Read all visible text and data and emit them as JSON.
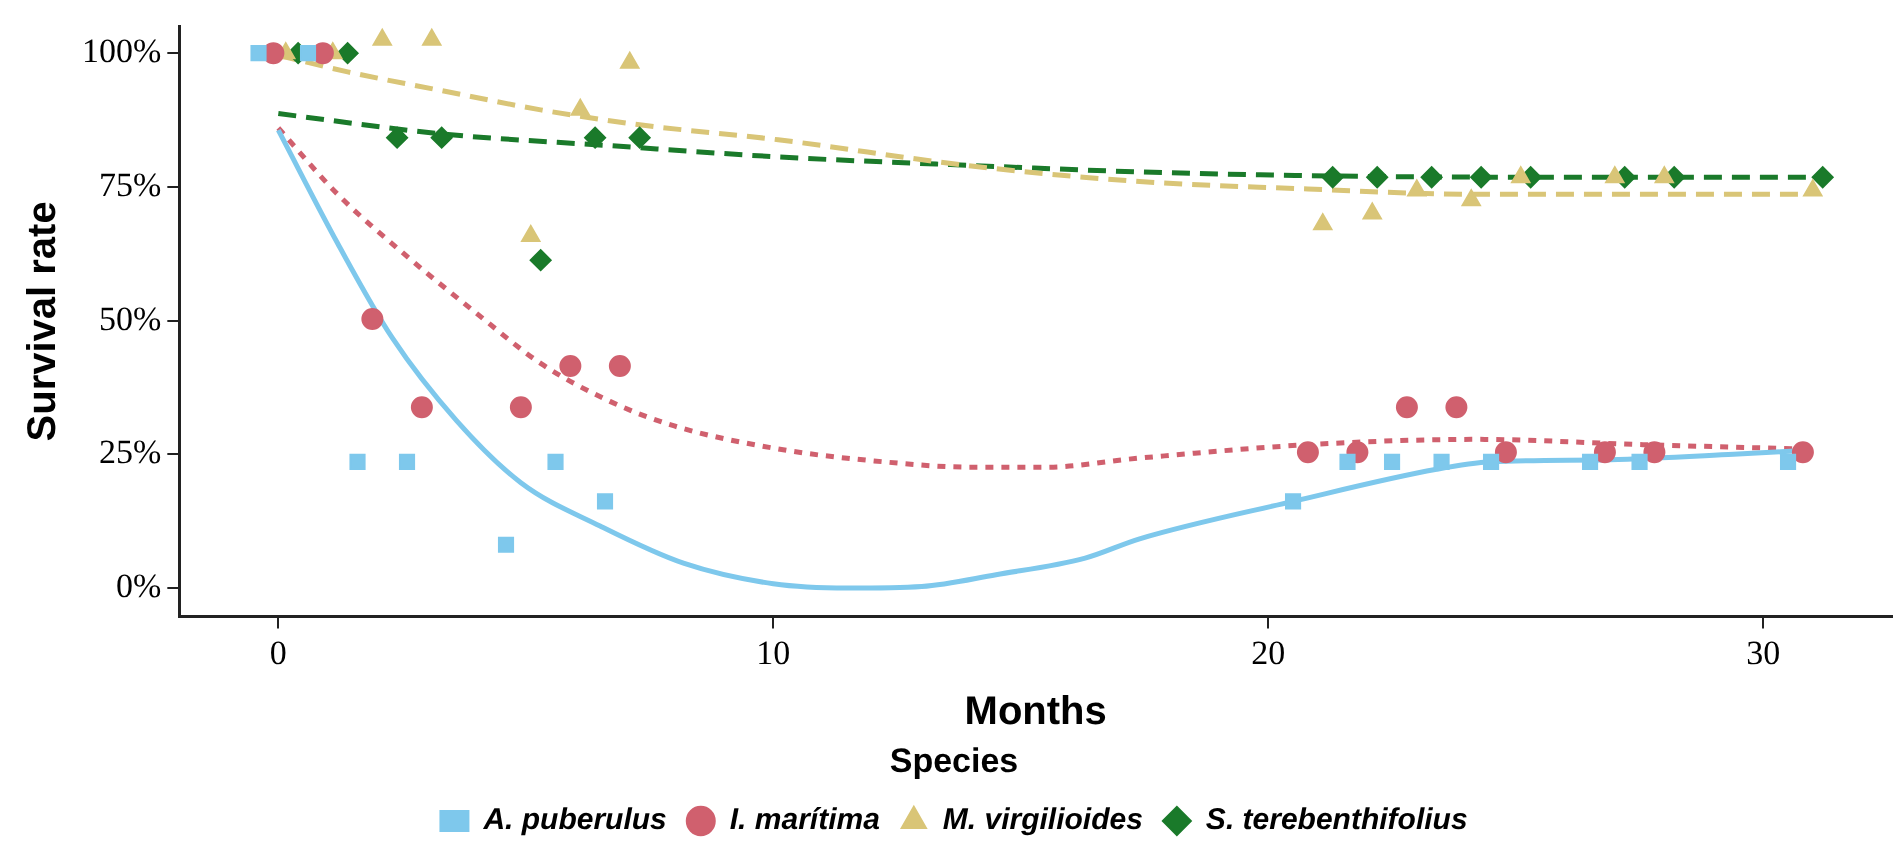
{
  "chart_data": {
    "type": "scatter",
    "xlabel": "Months",
    "ylabel": "Survival rate",
    "legend_title": "Species",
    "legend": "bottom",
    "grid": false,
    "xlim": [
      -2,
      32.6
    ],
    "xticks": [
      0,
      10,
      20,
      30
    ],
    "ylim": [
      -5.3,
      105
    ],
    "yticks": [
      {
        "value": 0,
        "label": "0%"
      },
      {
        "value": 25,
        "label": "25%"
      },
      {
        "value": 50,
        "label": "50%"
      },
      {
        "value": 75,
        "label": "75%"
      },
      {
        "value": 100,
        "label": "100%"
      }
    ],
    "series": [
      {
        "name": "A. puberulus",
        "marker": "square",
        "color": "#7ec8ec",
        "x": [
          -0.4,
          0.6,
          1.6,
          2.6,
          4.6,
          5.6,
          6.6,
          20.5,
          21.6,
          22.5,
          23.5,
          24.5,
          26.5,
          27.5,
          30.5
        ],
        "values": [
          100,
          100,
          23.6,
          23.6,
          8.1,
          23.6,
          16.2,
          16.2,
          23.6,
          23.6,
          23.6,
          23.6,
          23.6,
          23.6,
          23.6
        ]
      },
      {
        "name": "I. marítima",
        "marker": "circle",
        "color": "#d0606e",
        "x": [
          -0.1,
          0.9,
          1.9,
          2.9,
          4.9,
          5.9,
          6.9,
          20.8,
          21.8,
          22.8,
          23.8,
          24.8,
          26.8,
          27.8,
          30.8
        ],
        "values": [
          100,
          100,
          50.3,
          33.8,
          33.8,
          41.5,
          41.5,
          25.4,
          25.4,
          33.8,
          33.8,
          25.4,
          25.4,
          25.4,
          25.4
        ]
      },
      {
        "name": "M. virgilioides",
        "marker": "triangle",
        "color": "#d9c577",
        "x": [
          0.15,
          1.1,
          2.1,
          3.1,
          5.1,
          6.1,
          7.1,
          21.1,
          22.1,
          23,
          24.1,
          25.1,
          27,
          28,
          31
        ],
        "values": [
          100,
          100,
          102.5,
          102.5,
          65.8,
          89.4,
          98.2,
          68,
          70,
          74.3,
          72.5,
          76.8,
          76.8,
          76.8,
          74.3
        ]
      },
      {
        "name": "S. terebenthifolius",
        "marker": "diamond",
        "color": "#1a7a2a",
        "x": [
          0.4,
          1.4,
          2.4,
          3.3,
          5.3,
          6.4,
          7.3,
          21.3,
          22.2,
          23.3,
          24.3,
          25.3,
          27.2,
          28.2,
          31.2
        ],
        "values": [
          100,
          100,
          84.2,
          84.2,
          61.3,
          84.2,
          84.2,
          76.8,
          76.8,
          76.8,
          76.8,
          76.8,
          76.8,
          76.8,
          76.8
        ]
      },
      {
        "type": "line",
        "marker": "none",
        "line_style": "solid",
        "color": "#7ec8ec",
        "x": [
          0,
          1.2,
          2.3,
          3.6,
          4.9,
          6.5,
          8.2,
          10,
          11.5,
          13,
          14.5,
          16.3,
          17.4,
          20.5,
          23.4,
          24.5,
          26.9,
          29.4,
          30.8
        ],
        "values": [
          85.6,
          64.4,
          46.8,
          31.3,
          19.7,
          11.6,
          4.6,
          0.8,
          0,
          0.3,
          2.5,
          5.6,
          9.2,
          16.2,
          22.2,
          23.6,
          24,
          25,
          25.7
        ]
      },
      {
        "type": "line",
        "marker": "none",
        "line_style": "dotted",
        "color": "#d0606e",
        "x": [
          0,
          1.2,
          2.6,
          4,
          5.3,
          6.7,
          8,
          10.1,
          12,
          14,
          15.5,
          17.4,
          20.8,
          24.2,
          27.6,
          30.8
        ],
        "values": [
          86,
          73.6,
          62,
          51.4,
          42,
          34.9,
          30.3,
          26,
          23.8,
          22.6,
          22.6,
          24.3,
          26.8,
          27.8,
          26.8,
          26
        ]
      },
      {
        "type": "line",
        "marker": "none",
        "line_style": "dashed",
        "color": "#d9c577",
        "x": [
          0,
          1.4,
          3.3,
          5.3,
          7.3,
          10.1,
          14,
          17.4,
          20.8,
          24.2,
          30.9
        ],
        "values": [
          99.6,
          96.5,
          93,
          89.4,
          86.6,
          83.8,
          78.9,
          76,
          74.6,
          73.6,
          73.6
        ]
      },
      {
        "type": "line",
        "marker": "none",
        "line_style": "dashed",
        "color": "#1a7a2a",
        "x": [
          0,
          3.3,
          6.7,
          10.1,
          14,
          17.4,
          20.8,
          25.6,
          30.9
        ],
        "values": [
          88.7,
          84.9,
          82.7,
          80.6,
          79,
          77.8,
          77.1,
          76.8,
          76.8
        ]
      }
    ]
  }
}
